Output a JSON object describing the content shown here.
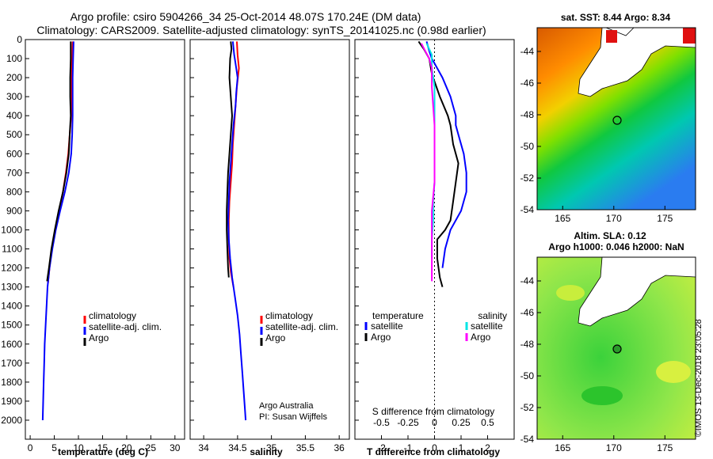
{
  "header": {
    "line1": "Argo profile: csiro 5904266_34 25-Oct-2014 48.07S 170.24E (DM data)",
    "line2": "Climatology: CARS2009. Satellite-adjusted climatology: synTS_20141025.nc (0.98d earlier)"
  },
  "credit": {
    "line1": "Argo Australia",
    "line2": "PI: Susan Wijffels"
  },
  "stamp": "©IMOS 13-Dec-2018 23:05:28",
  "colors": {
    "climatology": "#ff0000",
    "satellite": "#0000ff",
    "argo": "#000000",
    "sal_satellite": "#00e5e5",
    "sal_argo": "#ff00ff"
  },
  "chart_data": [
    {
      "type": "line",
      "panel": "temperature",
      "xlabel": "temperature (deg C)",
      "xlim": [
        -1,
        32
      ],
      "xticks": [
        0,
        5,
        10,
        15,
        20,
        25,
        30
      ],
      "ylim": [
        2100,
        0
      ],
      "yticks": [
        0,
        100,
        200,
        300,
        400,
        500,
        600,
        700,
        800,
        900,
        1000,
        1100,
        1200,
        1300,
        1400,
        1500,
        1600,
        1700,
        1800,
        1900,
        2000
      ],
      "legend": [
        "climatology",
        "satellite-adj. clim.",
        "Argo"
      ],
      "series": [
        {
          "name": "climatology",
          "color": "#ff0000",
          "points": [
            [
              8.8,
              10
            ],
            [
              8.7,
              100
            ],
            [
              8.6,
              200
            ],
            [
              8.6,
              300
            ],
            [
              8.5,
              400
            ],
            [
              8.2,
              500
            ],
            [
              7.9,
              600
            ],
            [
              7.4,
              700
            ],
            [
              6.8,
              800
            ],
            [
              6.0,
              900
            ],
            [
              5.2,
              1000
            ],
            [
              4.5,
              1100
            ],
            [
              4.0,
              1200
            ],
            [
              3.7,
              1280
            ]
          ]
        },
        {
          "name": "satellite-adj. clim.",
          "color": "#0000ff",
          "points": [
            [
              9.0,
              10
            ],
            [
              8.9,
              100
            ],
            [
              8.8,
              200
            ],
            [
              8.8,
              300
            ],
            [
              8.8,
              400
            ],
            [
              8.7,
              500
            ],
            [
              8.5,
              600
            ],
            [
              8.0,
              700
            ],
            [
              7.2,
              800
            ],
            [
              6.2,
              900
            ],
            [
              5.3,
              1000
            ],
            [
              4.6,
              1100
            ],
            [
              4.0,
              1200
            ],
            [
              3.6,
              1300
            ],
            [
              3.4,
              1400
            ],
            [
              3.2,
              1500
            ],
            [
              3.0,
              1600
            ],
            [
              2.9,
              1700
            ],
            [
              2.8,
              1800
            ],
            [
              2.7,
              1900
            ],
            [
              2.6,
              2000
            ]
          ]
        },
        {
          "name": "Argo",
          "color": "#000000",
          "points": [
            [
              8.4,
              10
            ],
            [
              8.4,
              100
            ],
            [
              8.3,
              200
            ],
            [
              8.3,
              300
            ],
            [
              8.4,
              400
            ],
            [
              8.2,
              500
            ],
            [
              8.0,
              600
            ],
            [
              7.5,
              700
            ],
            [
              6.8,
              800
            ],
            [
              5.9,
              900
            ],
            [
              5.1,
              1000
            ],
            [
              4.4,
              1100
            ],
            [
              3.9,
              1200
            ],
            [
              3.5,
              1270
            ]
          ]
        }
      ]
    },
    {
      "type": "line",
      "panel": "salinity",
      "xlabel": "salinity",
      "xlim": [
        33.8,
        36.15
      ],
      "xticks": [
        34,
        34.5,
        35,
        35.5,
        36
      ],
      "ylim": [
        2100,
        0
      ],
      "legend": [
        "climatology",
        "satellite-adj. clim.",
        "Argo"
      ],
      "series": [
        {
          "name": "climatology",
          "color": "#ff0000",
          "points": [
            [
              34.49,
              10
            ],
            [
              34.5,
              80
            ],
            [
              34.52,
              150
            ],
            [
              34.49,
              250
            ],
            [
              34.47,
              350
            ],
            [
              34.45,
              450
            ],
            [
              34.43,
              550
            ],
            [
              34.42,
              650
            ],
            [
              34.4,
              750
            ],
            [
              34.38,
              850
            ],
            [
              34.37,
              950
            ],
            [
              34.37,
              1050
            ],
            [
              34.38,
              1150
            ],
            [
              34.4,
              1220
            ],
            [
              34.44,
              1300
            ]
          ]
        },
        {
          "name": "satellite-adj. clim.",
          "color": "#0000ff",
          "points": [
            [
              34.43,
              10
            ],
            [
              34.45,
              80
            ],
            [
              34.48,
              150
            ],
            [
              34.5,
              200
            ],
            [
              34.48,
              280
            ],
            [
              34.47,
              350
            ],
            [
              34.44,
              450
            ],
            [
              34.42,
              550
            ],
            [
              34.4,
              650
            ],
            [
              34.38,
              750
            ],
            [
              34.37,
              850
            ],
            [
              34.36,
              950
            ],
            [
              34.37,
              1050
            ],
            [
              34.39,
              1150
            ],
            [
              34.42,
              1250
            ],
            [
              34.46,
              1350
            ],
            [
              34.5,
              1450
            ],
            [
              34.53,
              1550
            ],
            [
              34.55,
              1650
            ],
            [
              34.57,
              1750
            ],
            [
              34.59,
              1850
            ],
            [
              34.61,
              1950
            ],
            [
              34.62,
              2000
            ]
          ]
        },
        {
          "name": "Argo",
          "color": "#000000",
          "points": [
            [
              34.4,
              10
            ],
            [
              34.41,
              50
            ],
            [
              34.39,
              100
            ],
            [
              34.38,
              200
            ],
            [
              34.4,
              300
            ],
            [
              34.42,
              400
            ],
            [
              34.4,
              500
            ],
            [
              34.38,
              600
            ],
            [
              34.36,
              700
            ],
            [
              34.35,
              800
            ],
            [
              34.34,
              900
            ],
            [
              34.34,
              1000
            ],
            [
              34.35,
              1100
            ],
            [
              34.36,
              1200
            ],
            [
              34.37,
              1250
            ]
          ]
        }
      ]
    },
    {
      "type": "line",
      "panel": "difference",
      "xlabel": "T difference from climatology",
      "x2label": "S difference from climatology",
      "xlim": [
        -3.0,
        3.0
      ],
      "xticks": [
        -2,
        -1,
        0,
        1,
        2
      ],
      "x2ticks": [
        "-0.5",
        "-0.25",
        "0",
        "0.25",
        "0.5"
      ],
      "ylim": [
        2100,
        0
      ],
      "legend_left_title": "temperature",
      "legend_right_title": "salinity",
      "legend_left": [
        "satellite",
        "Argo"
      ],
      "legend_right": [
        "satellite",
        "Argo"
      ],
      "series": [
        {
          "name": "T satellite",
          "color": "#0000ff",
          "points": [
            [
              -0.3,
              10
            ],
            [
              -0.2,
              60
            ],
            [
              -0.1,
              100
            ],
            [
              0.3,
              200
            ],
            [
              0.6,
              300
            ],
            [
              0.8,
              400
            ],
            [
              0.8,
              450
            ],
            [
              0.9,
              500
            ],
            [
              1.1,
              600
            ],
            [
              1.2,
              700
            ],
            [
              1.2,
              800
            ],
            [
              1.0,
              900
            ],
            [
              0.6,
              1000
            ],
            [
              0.4,
              1100
            ],
            [
              0.3,
              1200
            ]
          ]
        },
        {
          "name": "T Argo",
          "color": "#000000",
          "points": [
            [
              -0.6,
              10
            ],
            [
              -0.4,
              50
            ],
            [
              -0.2,
              100
            ],
            [
              -0.1,
              180
            ],
            [
              0.2,
              300
            ],
            [
              0.5,
              400
            ],
            [
              0.6,
              450
            ],
            [
              0.7,
              550
            ],
            [
              0.9,
              650
            ],
            [
              0.8,
              750
            ],
            [
              0.7,
              850
            ],
            [
              0.6,
              950
            ],
            [
              0.4,
              1000
            ],
            [
              0.1,
              1050
            ],
            [
              0.1,
              1150
            ],
            [
              0.2,
              1250
            ],
            [
              0.3,
              1300
            ]
          ]
        },
        {
          "name": "S satellite",
          "color": "#00e5e5",
          "points": [
            [
              -0.3,
              20
            ],
            [
              -0.1,
              80
            ],
            [
              -0.1,
              150
            ],
            [
              0.0,
              250
            ],
            [
              0.0,
              350
            ],
            [
              0.0,
              450
            ],
            [
              0.0,
              550
            ],
            [
              0.0,
              650
            ],
            [
              0.0,
              750
            ],
            [
              -0.05,
              850
            ],
            [
              -0.05,
              950
            ],
            [
              -0.1,
              1050
            ],
            [
              -0.1,
              1150
            ]
          ]
        },
        {
          "name": "S Argo",
          "color": "#ff00ff",
          "points": [
            [
              -0.5,
              20
            ],
            [
              -0.35,
              60
            ],
            [
              -0.2,
              100
            ],
            [
              -0.1,
              150
            ],
            [
              -0.1,
              250
            ],
            [
              -0.05,
              350
            ],
            [
              0.0,
              450
            ],
            [
              0.0,
              550
            ],
            [
              0.0,
              650
            ],
            [
              0.0,
              750
            ],
            [
              -0.1,
              900
            ],
            [
              -0.1,
              1050
            ],
            [
              -0.1,
              1200
            ],
            [
              -0.1,
              1270
            ]
          ]
        }
      ]
    },
    {
      "type": "heatmap",
      "panel": "sst-map",
      "title": "sat. SST: 8.44 Argo: 8.34",
      "xlim": [
        162.5,
        178
      ],
      "ylim": [
        -54,
        -42.5
      ],
      "xticks": [
        165,
        170,
        175
      ],
      "yticks": [
        -44,
        -46,
        -48,
        -50,
        -52,
        -54
      ],
      "marker": {
        "lon": 170.24,
        "lat": -48.07
      }
    },
    {
      "type": "heatmap",
      "panel": "sla-map",
      "title": "Altim. SLA: 0.12",
      "subtitle": "Argo h1000: 0.046 h2000: NaN",
      "xlim": [
        162.5,
        178
      ],
      "ylim": [
        -54,
        -42.5
      ],
      "xticks": [
        165,
        170,
        175
      ],
      "yticks": [
        -44,
        -46,
        -48,
        -50,
        -52,
        -54
      ],
      "marker": {
        "lon": 170.24,
        "lat": -48.07
      }
    }
  ]
}
